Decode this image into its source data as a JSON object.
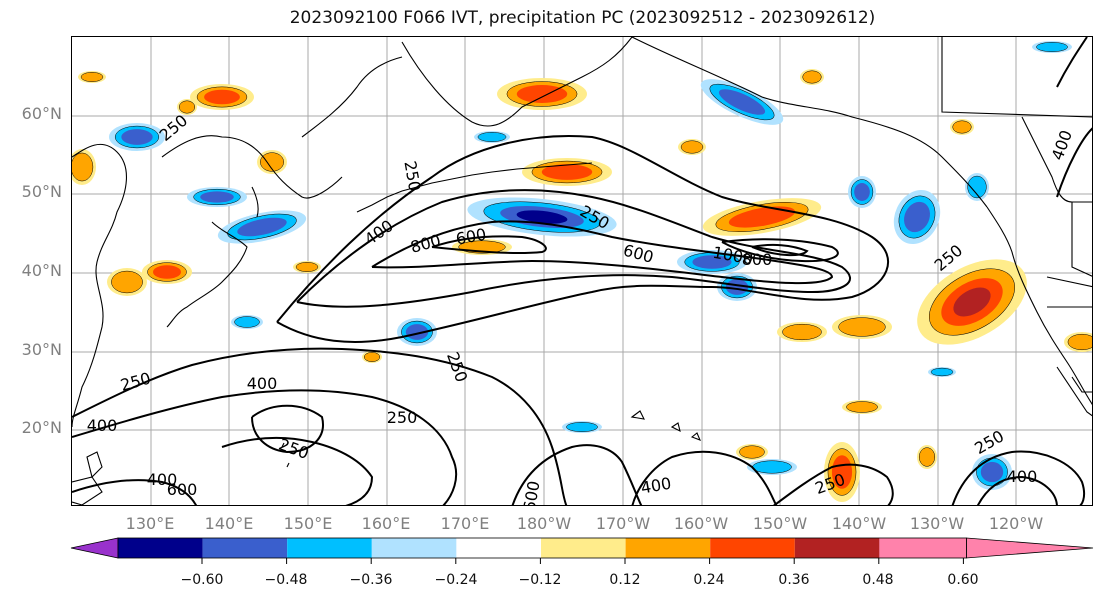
{
  "title": "2023092100 F066 IVT, precipitation PC (2023092512 - 2023092612)",
  "lat_labels": [
    "60°N",
    "50°N",
    "40°N",
    "30°N",
    "20°N"
  ],
  "lon_labels": [
    "130°E",
    "140°E",
    "150°E",
    "160°E",
    "170°E",
    "180°W",
    "170°W",
    "160°W",
    "150°W",
    "140°W",
    "130°W",
    "120°W"
  ],
  "contour_labels": [
    "250",
    "250",
    "250",
    "250",
    "400",
    "800",
    "600",
    "600",
    "1000",
    "800",
    "250",
    "400",
    "250",
    "400",
    "250",
    "400",
    "600",
    "400",
    "600",
    "400",
    "250",
    "250",
    "250",
    "400"
  ],
  "colorbar": {
    "ticks": [
      "−0.60",
      "−0.48",
      "−0.36",
      "−0.24",
      "−0.12",
      "0.12",
      "0.24",
      "0.36",
      "0.48",
      "0.60"
    ],
    "colors": [
      "#9932cc",
      "#00008b",
      "#3a5fcd",
      "#00bfff",
      "#b0e2ff",
      "#ffffff",
      "#ffec8b",
      "#ffa500",
      "#ff4500",
      "#b22222",
      "#ff82ab"
    ]
  },
  "anomaly_colors": {
    "neg1": "#b0e2ff",
    "neg2": "#00bfff",
    "neg3": "#3a5fcd",
    "neg4": "#00008b",
    "pos1": "#ffec8b",
    "pos2": "#ffa500",
    "pos3": "#ff4500",
    "pos4": "#b22222"
  }
}
